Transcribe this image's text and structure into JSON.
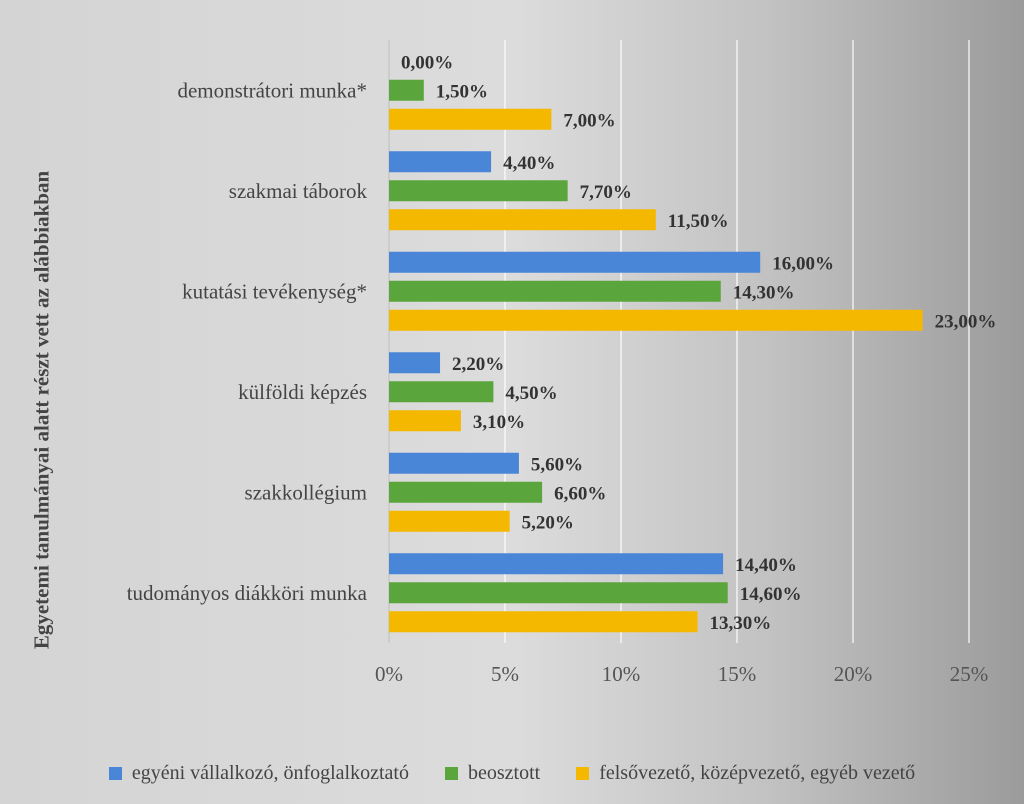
{
  "chart_data": {
    "type": "bar",
    "orientation": "horizontal",
    "categories": [
      "demonstrátori munka*",
      "szakmai táborok",
      "kutatási tevékenység*",
      "külföldi képzés",
      "szakkollégium",
      "tudományos diákköri munka"
    ],
    "series": [
      {
        "name": "egyéni vállalkozó, önfoglalkoztató",
        "color": "#4a86d8",
        "values": [
          0.0,
          4.4,
          16.0,
          2.2,
          5.6,
          14.4
        ],
        "labels": [
          "0,00%",
          "4,40%",
          "16,00%",
          "2,20%",
          "5,60%",
          "14,40%"
        ]
      },
      {
        "name": "beosztott",
        "color": "#5ba63c",
        "values": [
          1.5,
          7.7,
          14.3,
          4.5,
          6.6,
          14.6
        ],
        "labels": [
          "1,50%",
          "7,70%",
          "14,30%",
          "4,50%",
          "6,60%",
          "14,60%"
        ]
      },
      {
        "name": "felsővezető, középvezető, egyéb vezető",
        "color": "#f5b800",
        "values": [
          7.0,
          11.5,
          23.0,
          3.1,
          5.2,
          13.3
        ],
        "labels": [
          "7,00%",
          "11,50%",
          "23,00%",
          "3,10%",
          "5,20%",
          "13,30%"
        ]
      }
    ],
    "xlim": [
      0,
      25
    ],
    "xticks": [
      0,
      5,
      10,
      15,
      20,
      25
    ],
    "xtick_labels": [
      "0%",
      "5%",
      "10%",
      "15%",
      "20%",
      "25%"
    ],
    "ylabel": "Egyetemi tanulmányai alatt részt vett az alábbiakban",
    "grid": "vertical",
    "legend_position": "bottom"
  }
}
